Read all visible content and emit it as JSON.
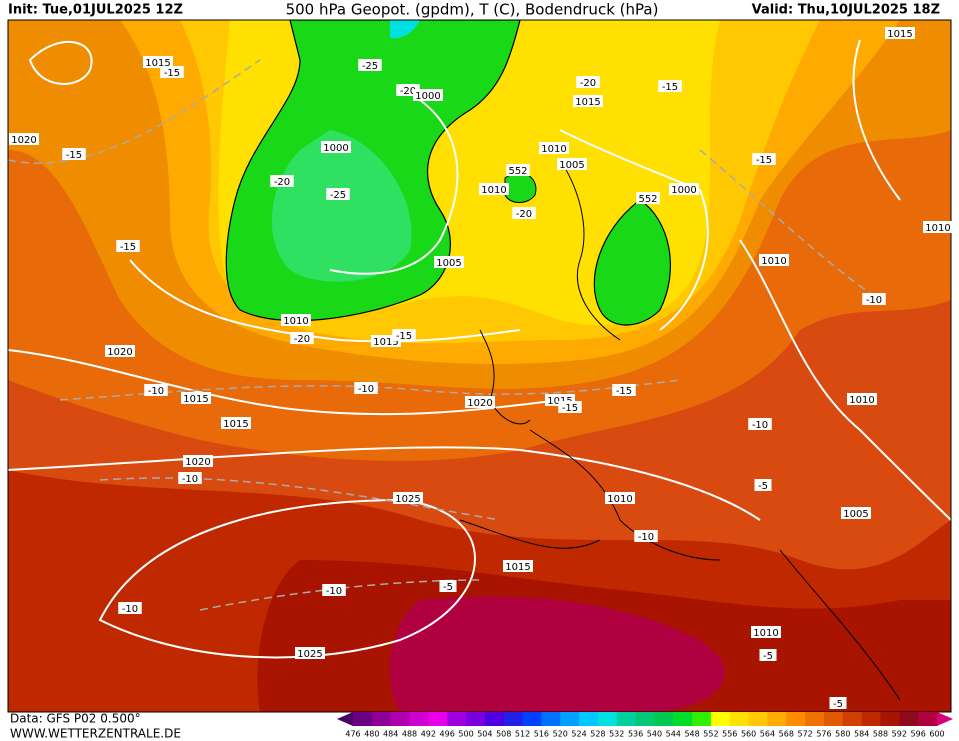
{
  "header": {
    "init": "Init: Tue,01JUL2025 12Z",
    "title": "500 hPa Geopot. (gpdm), T (C), Bodendruck (hPa)",
    "valid": "Valid: Thu,10JUL2025 18Z"
  },
  "footer": {
    "data_source": "Data: GFS P02 0.500°",
    "website": "WWW.WETTERZENTRALE.DE"
  },
  "colorbar": {
    "labels": [
      476,
      480,
      484,
      488,
      492,
      496,
      500,
      504,
      508,
      512,
      516,
      520,
      524,
      528,
      532,
      536,
      540,
      544,
      548,
      552,
      556,
      560,
      564,
      568,
      572,
      576,
      580,
      584,
      588,
      592,
      596,
      600
    ],
    "colors": [
      "#4b0066",
      "#6a0080",
      "#8c0099",
      "#b000b0",
      "#d000d0",
      "#e800e8",
      "#a000e0",
      "#7a00e0",
      "#5000e0",
      "#2020e8",
      "#0040ff",
      "#0070ff",
      "#00a0ff",
      "#00c8ff",
      "#00e0e0",
      "#00d0a0",
      "#00c878",
      "#00c850",
      "#00dc28",
      "#30f000",
      "#ffff00",
      "#ffe000",
      "#ffc800",
      "#ffaa00",
      "#ff8c00",
      "#f07000",
      "#e05a00",
      "#d04000",
      "#c02800",
      "#a81400",
      "#900a1e",
      "#b00040",
      "#d8007a"
    ]
  },
  "map": {
    "labels": [
      "1015",
      "-15",
      "1020",
      "-15",
      "-25",
      "-20",
      "1000",
      "1000",
      "-20",
      "-25",
      "1005",
      "1010",
      "-20",
      "1015",
      "-15",
      "1020",
      "-15",
      "-10",
      "1015",
      "1015",
      "-10",
      "1020",
      "1015",
      "-15",
      "-15",
      "1010",
      "1005",
      "1010",
      "552",
      "-20",
      "552",
      "1000",
      "-20",
      "1015",
      "-15",
      "1015",
      "-15",
      "1010",
      "1010",
      "-10",
      "1010",
      "-10",
      "1020",
      "-10",
      "1025",
      "1010",
      "-5",
      "1005",
      "-10",
      "1015",
      "-5",
      "-10",
      "-10",
      "1010",
      "-5",
      "1025",
      "-5"
    ]
  }
}
